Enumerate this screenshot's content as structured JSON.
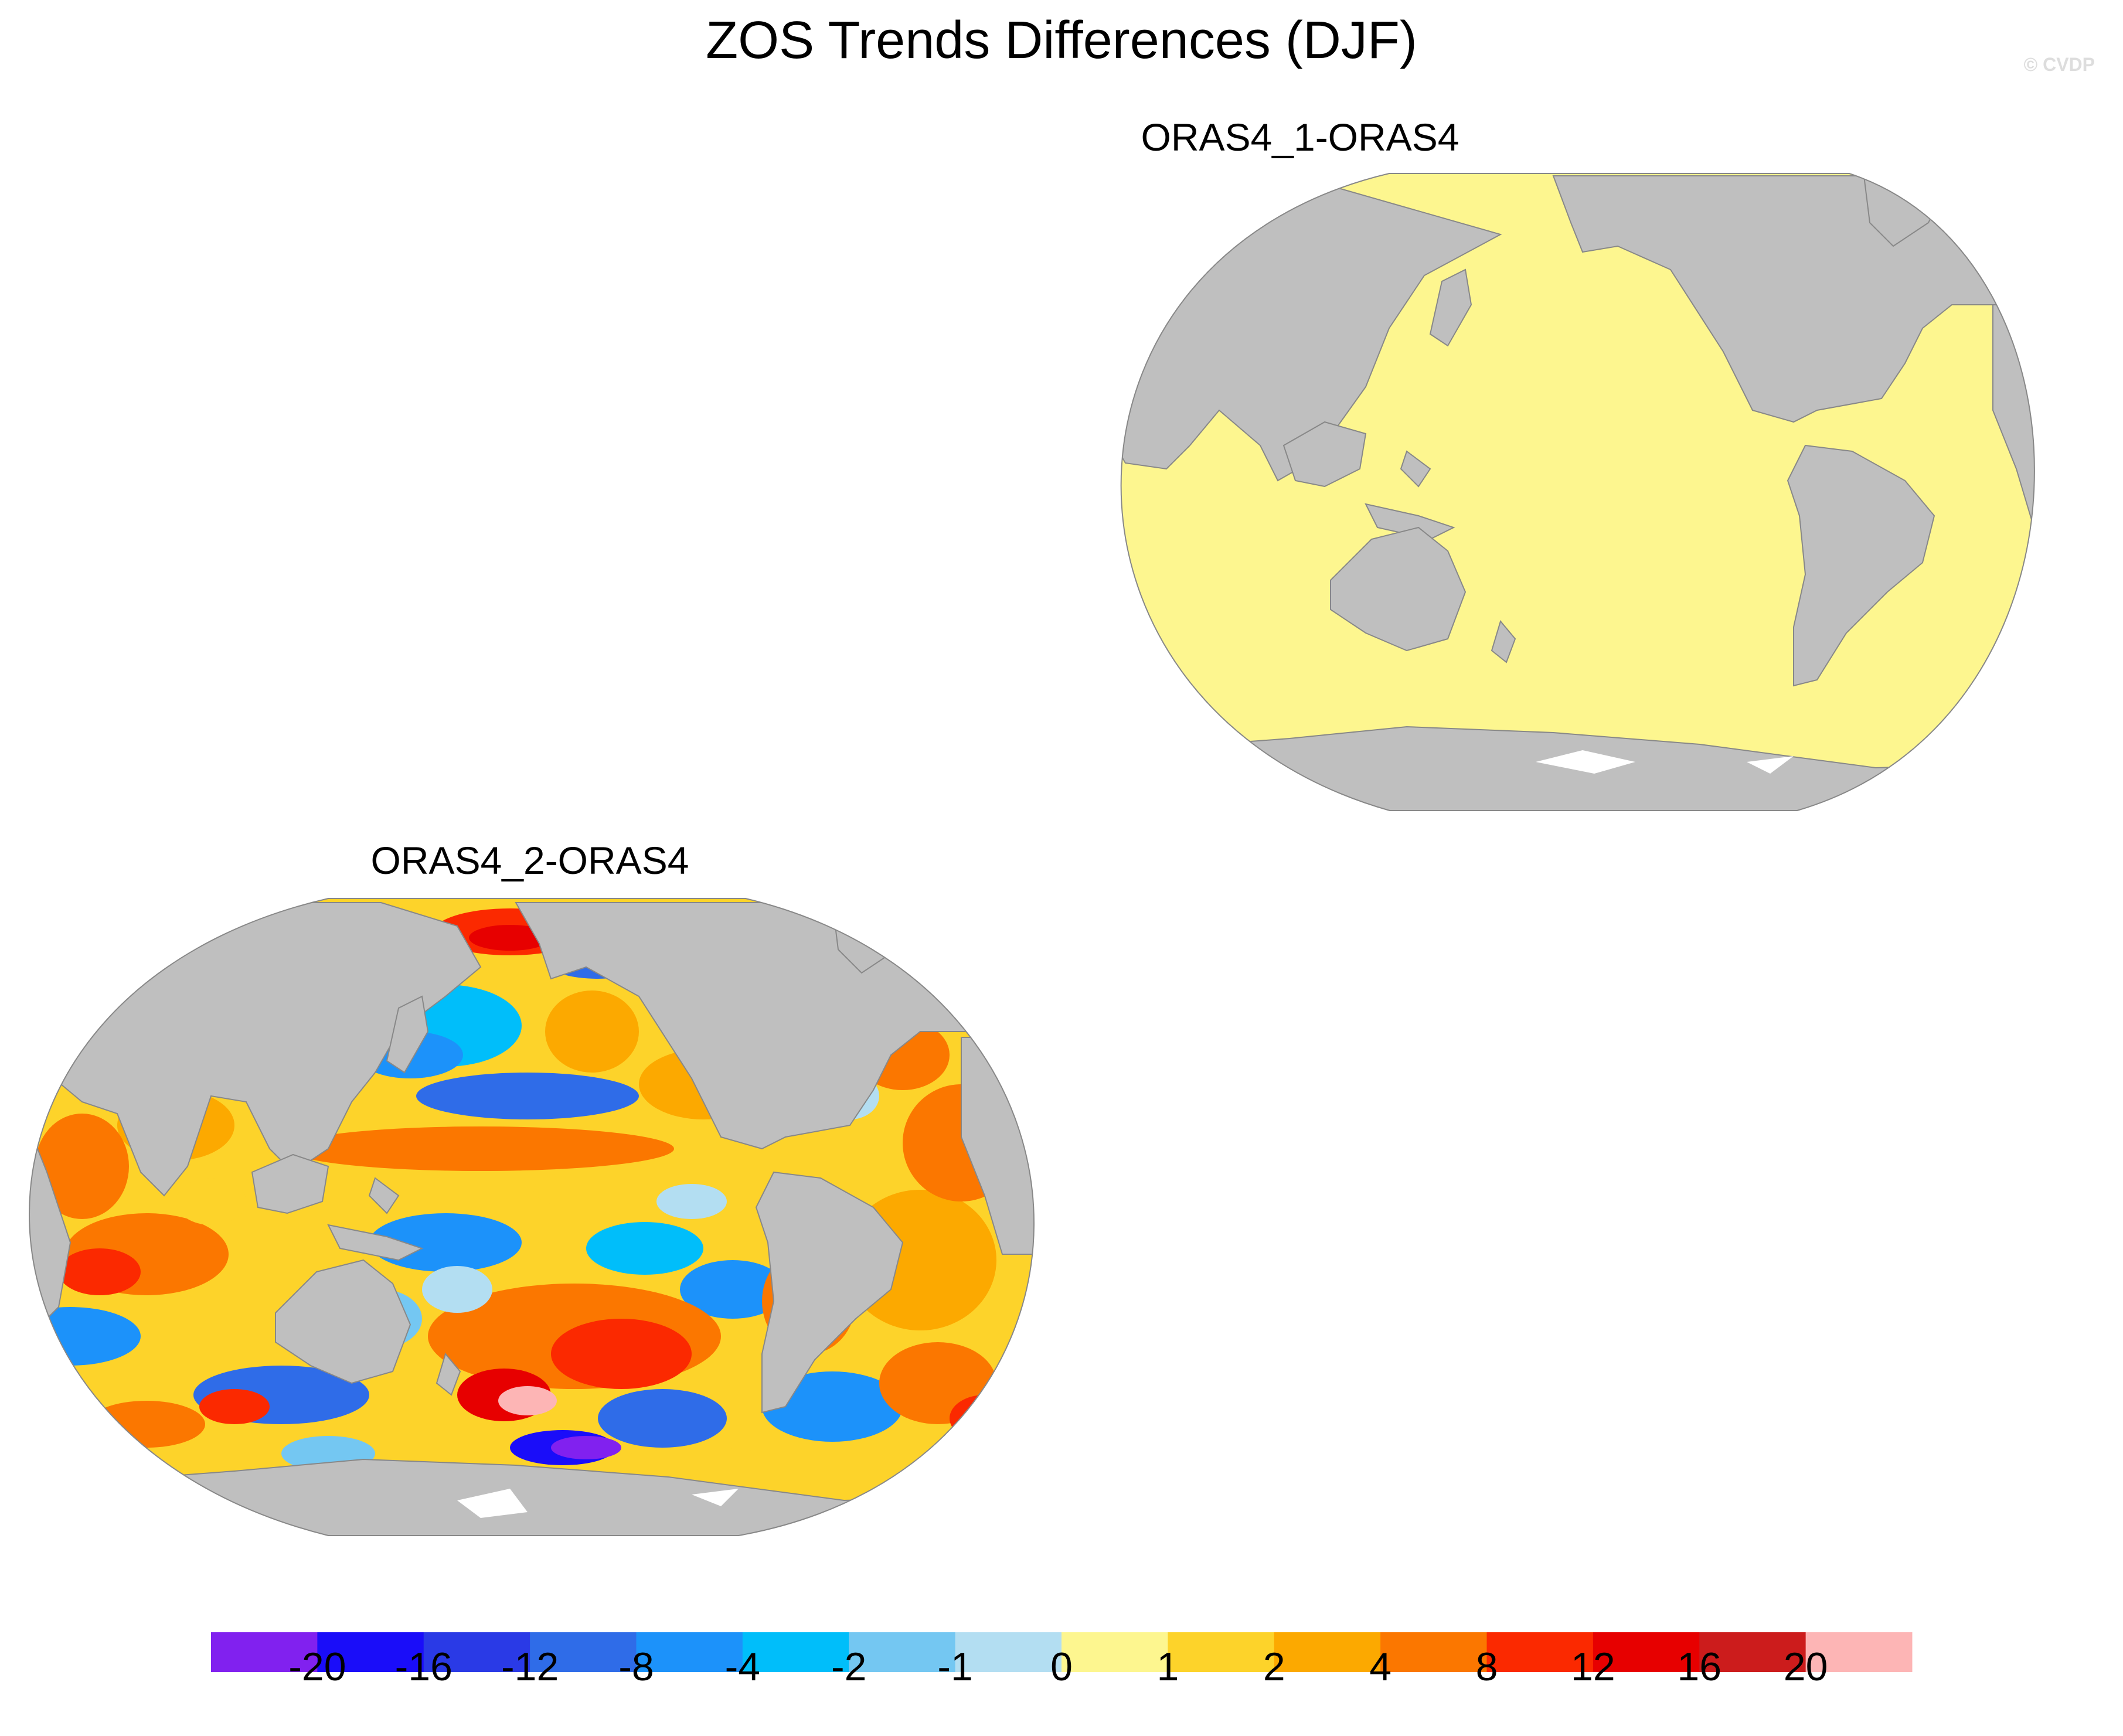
{
  "figure": {
    "title": "ZOS Trends Differences (DJF)",
    "credit": "© CVDP"
  },
  "panels": [
    {
      "title": "ORAS4_1-ORAS4",
      "field": "uniform",
      "fill_color": "#fdf68f"
    },
    {
      "title": "ORAS4_2-ORAS4",
      "field": "varied"
    }
  ],
  "colors": {
    "land": "#bfbfbf",
    "coast": "#888888",
    "ice": "#ffffff"
  },
  "colorbar": {
    "labels": [
      "-20",
      "-16",
      "-12",
      "-8",
      "-4",
      "-2",
      "-1",
      "0",
      "1",
      "2",
      "4",
      "8",
      "12",
      "16",
      "20"
    ],
    "colors": [
      "#8121ef",
      "#1a0df9",
      "#2a3ae6",
      "#2f6ce8",
      "#1c92fa",
      "#00befa",
      "#74c7f2",
      "#b3def2",
      "#fdf68f",
      "#fdd32a",
      "#fca900",
      "#fb7700",
      "#fb2900",
      "#e70000",
      "#cc1c1c",
      "#fdb5b5"
    ]
  }
}
